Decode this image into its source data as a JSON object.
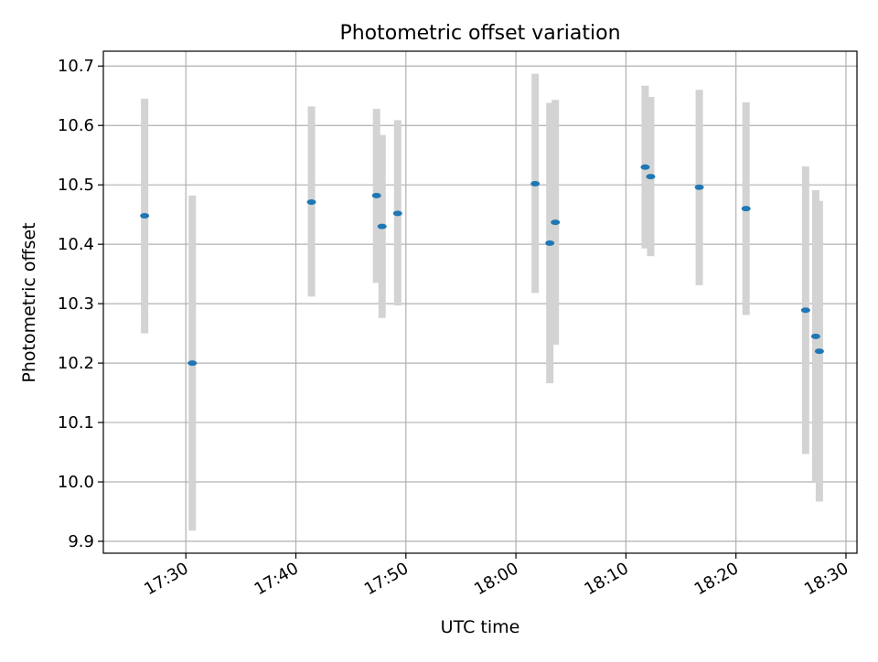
{
  "chart_data": {
    "type": "scatter",
    "title": "Photometric offset variation",
    "xlabel": "UTC time",
    "ylabel": "Photometric offset",
    "xlim": [
      "17:22:30",
      "18:31:00"
    ],
    "ylim": [
      9.88,
      10.725
    ],
    "grid": true,
    "x_ticks": [
      "17:30",
      "17:40",
      "17:50",
      "18:00",
      "18:10",
      "18:20",
      "18:30"
    ],
    "y_ticks": [
      "9.9",
      "10.0",
      "10.1",
      "10.2",
      "10.3",
      "10.4",
      "10.5",
      "10.6",
      "10.7"
    ],
    "y_tick_values": [
      9.9,
      10.0,
      10.1,
      10.2,
      10.3,
      10.4,
      10.5,
      10.6,
      10.7
    ],
    "marker_color": "#1f77b4",
    "errorbar_color": "#d3d3d3",
    "points": [
      {
        "time": "17:26:15",
        "value": 10.448,
        "low": 10.25,
        "high": 10.645
      },
      {
        "time": "17:30:35",
        "value": 10.2,
        "low": 9.918,
        "high": 10.482
      },
      {
        "time": "17:41:25",
        "value": 10.471,
        "low": 10.312,
        "high": 10.632
      },
      {
        "time": "17:47:20",
        "value": 10.482,
        "low": 10.335,
        "high": 10.628
      },
      {
        "time": "17:47:50",
        "value": 10.43,
        "low": 10.276,
        "high": 10.584
      },
      {
        "time": "17:49:15",
        "value": 10.452,
        "low": 10.297,
        "high": 10.609
      },
      {
        "time": "18:01:45",
        "value": 10.502,
        "low": 10.318,
        "high": 10.687
      },
      {
        "time": "18:03:05",
        "value": 10.402,
        "low": 10.166,
        "high": 10.638
      },
      {
        "time": "18:03:35",
        "value": 10.437,
        "low": 10.231,
        "high": 10.643
      },
      {
        "time": "18:11:45",
        "value": 10.53,
        "low": 10.393,
        "high": 10.667
      },
      {
        "time": "18:12:15",
        "value": 10.514,
        "low": 10.38,
        "high": 10.648
      },
      {
        "time": "18:16:40",
        "value": 10.496,
        "low": 10.331,
        "high": 10.66
      },
      {
        "time": "18:20:55",
        "value": 10.46,
        "low": 10.281,
        "high": 10.639
      },
      {
        "time": "18:26:20",
        "value": 10.289,
        "low": 10.047,
        "high": 10.531
      },
      {
        "time": "18:27:15",
        "value": 10.245,
        "low": 10.0,
        "high": 10.491
      },
      {
        "time": "18:27:35",
        "value": 10.22,
        "low": 9.967,
        "high": 10.473
      }
    ]
  }
}
